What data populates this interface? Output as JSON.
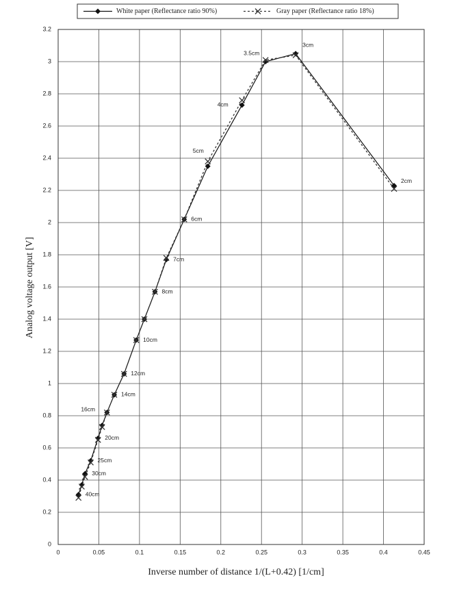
{
  "chart_data": {
    "type": "line",
    "x_label": "Inverse number of distance   1/(L+0.42)  [1/cm]",
    "y_label": "Analog voltage output [V]",
    "x": [
      0.413,
      0.292,
      0.255,
      0.226,
      0.184,
      0.155,
      0.133,
      0.119,
      0.106,
      0.096,
      0.081,
      0.069,
      0.06,
      0.054,
      0.049,
      0.04,
      0.033,
      0.029,
      0.025
    ],
    "point_labels": [
      "2cm",
      "3cm",
      "3.5cm",
      "4cm",
      "5cm",
      "6cm",
      "7cm",
      "8cm",
      null,
      "10cm",
      "12cm",
      "14cm",
      "16cm",
      null,
      "20cm",
      "25cm",
      "30cm",
      null,
      "40cm"
    ],
    "series": [
      {
        "name": "White paper (Reflectance ratio 90%)",
        "color": "#111111",
        "marker": "diamond",
        "dashed": false,
        "values": [
          2.23,
          3.05,
          3.0,
          2.73,
          2.35,
          2.02,
          1.77,
          1.57,
          1.4,
          1.27,
          1.06,
          0.93,
          0.82,
          0.74,
          0.66,
          0.52,
          0.44,
          0.37,
          0.31
        ]
      },
      {
        "name": "Gray paper (Reflectance ratio 18%)",
        "color": "#333333",
        "marker": "x",
        "dashed": true,
        "values": [
          2.21,
          3.04,
          3.01,
          2.76,
          2.38,
          2.02,
          1.78,
          1.57,
          1.4,
          1.27,
          1.06,
          0.93,
          0.82,
          0.73,
          0.65,
          0.51,
          0.42,
          0.36,
          0.29
        ]
      }
    ],
    "xlim": [
      0,
      0.45
    ],
    "ylim": [
      0,
      3.2
    ],
    "xticks": [
      0,
      0.05,
      0.1,
      0.15,
      0.2,
      0.25,
      0.3,
      0.35,
      0.4,
      0.45
    ],
    "yticks": [
      0,
      0.2,
      0.4,
      0.6,
      0.8,
      1,
      1.2,
      1.4,
      1.6,
      1.8,
      2,
      2.2,
      2.4,
      2.6,
      2.8,
      3,
      3.2
    ],
    "grid": true,
    "legend": "top"
  }
}
